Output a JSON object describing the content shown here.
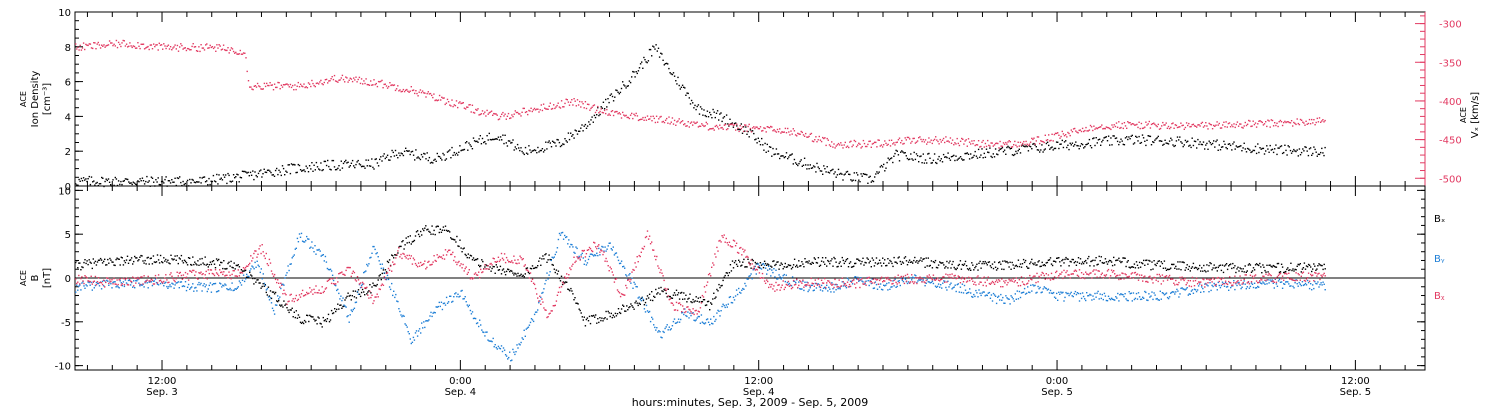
{
  "colors": {
    "black": "#000000",
    "blue": "#1f7fd6",
    "red": "#e23a62",
    "axis": "#000000"
  },
  "x_axis": {
    "label": "hours:minutes, Sep.  3, 2009 - Sep.  5, 2009",
    "ticks": [
      {
        "t": 12,
        "line1": "12:00",
        "line2": "Sep. 3"
      },
      {
        "t": 24,
        "line1": "0:00",
        "line2": "Sep. 4"
      },
      {
        "t": 36,
        "line1": "12:00",
        "line2": "Sep. 4"
      },
      {
        "t": 48,
        "line1": "0:00",
        "line2": "Sep. 5"
      },
      {
        "t": 60,
        "line1": "12:00",
        "line2": "Sep. 5"
      }
    ],
    "range_hours": [
      8.5,
      62.8
    ]
  },
  "chart_data": [
    {
      "type": "scatter",
      "ylabel_left": [
        "ACE",
        "Ion Density",
        "[cm⁻³]"
      ],
      "ylabel_right": [
        "ACE",
        "Vₓ [km/s]"
      ],
      "ylim_left": [
        0,
        10
      ],
      "ylim_right": [
        -510,
        -285
      ],
      "left_ticks": [
        0,
        2,
        4,
        6,
        8,
        10
      ],
      "right_ticks": [
        -300,
        -350,
        -400,
        -450,
        -500
      ],
      "series": [
        {
          "axis": "left",
          "color": "black",
          "points": [
            [
              8.5,
              0.3
            ],
            [
              11,
              0.3
            ],
            [
              13.5,
              0.3
            ],
            [
              15.3,
              0.6
            ],
            [
              17,
              1.0
            ],
            [
              18.5,
              1.2
            ],
            [
              20.5,
              1.3
            ],
            [
              21.5,
              2.0
            ],
            [
              23,
              1.6
            ],
            [
              24.5,
              2.5
            ],
            [
              25.5,
              3.0
            ],
            [
              26.5,
              2.0
            ],
            [
              28,
              2.5
            ],
            [
              29,
              3.5
            ],
            [
              30,
              5.0
            ],
            [
              31,
              6.5
            ],
            [
              31.8,
              8.0
            ],
            [
              32.5,
              6.5
            ],
            [
              33.5,
              4.5
            ],
            [
              34.5,
              4.0
            ],
            [
              35.5,
              3.2
            ],
            [
              36.5,
              2.0
            ],
            [
              37.5,
              1.5
            ],
            [
              38.5,
              1.0
            ],
            [
              39.5,
              0.6
            ],
            [
              40.5,
              0.4
            ],
            [
              41.5,
              1.8
            ],
            [
              43,
              1.6
            ],
            [
              45,
              1.9
            ],
            [
              47,
              2.2
            ],
            [
              49,
              2.5
            ],
            [
              51,
              2.7
            ],
            [
              53,
              2.6
            ],
            [
              55,
              2.3
            ],
            [
              57,
              2.1
            ],
            [
              58.8,
              2.0
            ]
          ]
        },
        {
          "axis": "right",
          "color": "red",
          "points": [
            [
              8.5,
              -330
            ],
            [
              10.5,
              -325
            ],
            [
              12,
              -330
            ],
            [
              14,
              -330
            ],
            [
              15.3,
              -335
            ],
            [
              15.5,
              -380
            ],
            [
              17.5,
              -380
            ],
            [
              19,
              -370
            ],
            [
              20.5,
              -375
            ],
            [
              22,
              -385
            ],
            [
              24,
              -405
            ],
            [
              25.5,
              -420
            ],
            [
              27,
              -410
            ],
            [
              28.5,
              -400
            ],
            [
              29.5,
              -410
            ],
            [
              31,
              -420
            ],
            [
              32.5,
              -425
            ],
            [
              34,
              -432
            ],
            [
              36,
              -435
            ],
            [
              37.5,
              -440
            ],
            [
              39,
              -455
            ],
            [
              40.5,
              -455
            ],
            [
              42,
              -450
            ],
            [
              43.5,
              -450
            ],
            [
              45,
              -455
            ],
            [
              46.5,
              -455
            ],
            [
              48,
              -445
            ],
            [
              49.5,
              -432
            ],
            [
              51,
              -430
            ],
            [
              53,
              -432
            ],
            [
              55,
              -430
            ],
            [
              57,
              -428
            ],
            [
              58.8,
              -425
            ]
          ]
        }
      ]
    },
    {
      "type": "scatter",
      "ylabel_left": [
        "ACE",
        "B",
        "[nT]"
      ],
      "ylim": [
        -10.5,
        10.5
      ],
      "ticks": [
        -10,
        -5,
        0,
        5,
        10
      ],
      "legend": [
        {
          "name": "Bₓ",
          "color": "black"
        },
        {
          "name": "Bᵧ",
          "color": "blue"
        },
        {
          "name": "Bᵪ",
          "color": "red"
        }
      ],
      "series": [
        {
          "name": "Bₓ",
          "color": "black",
          "points": [
            [
              8.5,
              1.5
            ],
            [
              10,
              2.0
            ],
            [
              12,
              2.2
            ],
            [
              13.5,
              2.0
            ],
            [
              15,
              1.5
            ],
            [
              16.5,
              -2.0
            ],
            [
              17.5,
              -4.5
            ],
            [
              18.5,
              -5.0
            ],
            [
              19.5,
              -2.0
            ],
            [
              20.5,
              -1.0
            ],
            [
              21.5,
              3.5
            ],
            [
              22.5,
              5.5
            ],
            [
              23.5,
              5.5
            ],
            [
              24.5,
              2.0
            ],
            [
              25.5,
              1.0
            ],
            [
              26.5,
              0.5
            ],
            [
              27.5,
              2.5
            ],
            [
              28.5,
              -2.0
            ],
            [
              29,
              -5.0
            ],
            [
              30,
              -4.0
            ],
            [
              31,
              -3.0
            ],
            [
              32,
              -1.5
            ],
            [
              33,
              -2.0
            ],
            [
              34,
              -3.0
            ],
            [
              35,
              2.0
            ],
            [
              36,
              1.5
            ],
            [
              37,
              1.5
            ],
            [
              38,
              2.0
            ],
            [
              40,
              1.8
            ],
            [
              42,
              2.0
            ],
            [
              44,
              1.5
            ],
            [
              46,
              1.5
            ],
            [
              48,
              2.0
            ],
            [
              50,
              2.0
            ],
            [
              52,
              1.5
            ],
            [
              54,
              1.3
            ],
            [
              56,
              1.2
            ],
            [
              58.8,
              1.3
            ]
          ]
        },
        {
          "name": "Bᵧ",
          "color": "blue",
          "points": [
            [
              8.5,
              -1.0
            ],
            [
              10,
              -0.5
            ],
            [
              12,
              -0.5
            ],
            [
              13.5,
              -1.0
            ],
            [
              15,
              -1.0
            ],
            [
              15.8,
              2.0
            ],
            [
              16.5,
              -3.5
            ],
            [
              17.5,
              5.0
            ],
            [
              18.5,
              2.5
            ],
            [
              19.5,
              -4.5
            ],
            [
              20.5,
              3.5
            ],
            [
              21.5,
              -3.0
            ],
            [
              22,
              -7.0
            ],
            [
              23,
              -3.5
            ],
            [
              24,
              -1.5
            ],
            [
              25,
              -6.5
            ],
            [
              26,
              -9.0
            ],
            [
              27,
              -4.0
            ],
            [
              28,
              5.0
            ],
            [
              29,
              2.0
            ],
            [
              30,
              4.0
            ],
            [
              31,
              -1.0
            ],
            [
              32,
              -6.5
            ],
            [
              33,
              -4.0
            ],
            [
              34,
              -5.0
            ],
            [
              35,
              -2.0
            ],
            [
              36,
              1.5
            ],
            [
              37,
              0.0
            ],
            [
              38,
              -1.0
            ],
            [
              39,
              -1.0
            ],
            [
              40,
              0.0
            ],
            [
              41,
              -1.0
            ],
            [
              42,
              0.0
            ],
            [
              43,
              -0.5
            ],
            [
              44,
              -1.0
            ],
            [
              45,
              -2.0
            ],
            [
              46,
              -2.5
            ],
            [
              47,
              -1.0
            ],
            [
              48,
              -2.0
            ],
            [
              50,
              -2.0
            ],
            [
              52,
              -2.0
            ],
            [
              54,
              -1.0
            ],
            [
              56,
              -0.5
            ],
            [
              58.8,
              -0.8
            ]
          ]
        },
        {
          "name": "Bᵪ",
          "color": "red",
          "points": [
            [
              8.5,
              0.0
            ],
            [
              10,
              -0.5
            ],
            [
              12,
              0.0
            ],
            [
              13.5,
              0.5
            ],
            [
              15,
              0.5
            ],
            [
              16,
              3.5
            ],
            [
              17,
              -2.5
            ],
            [
              18.5,
              -1.0
            ],
            [
              19.5,
              1.0
            ],
            [
              20.5,
              -2.5
            ],
            [
              21.5,
              3.0
            ],
            [
              22.5,
              1.5
            ],
            [
              23.5,
              3.0
            ],
            [
              24.5,
              0.0
            ],
            [
              25.5,
              2.5
            ],
            [
              26.5,
              2.0
            ],
            [
              27.5,
              -4.5
            ],
            [
              28.5,
              2.0
            ],
            [
              29.5,
              4.0
            ],
            [
              30.5,
              -2.0
            ],
            [
              31.5,
              5.0
            ],
            [
              32.5,
              -3.0
            ],
            [
              33.5,
              -4.0
            ],
            [
              34.5,
              5.0
            ],
            [
              35.5,
              2.5
            ],
            [
              36.5,
              -1.0
            ],
            [
              37.5,
              -0.5
            ],
            [
              38.5,
              -0.5
            ],
            [
              40,
              -0.5
            ],
            [
              42,
              0.0
            ],
            [
              44,
              0.0
            ],
            [
              46,
              -0.5
            ],
            [
              48,
              0.5
            ],
            [
              50,
              0.5
            ],
            [
              52,
              0.0
            ],
            [
              54,
              -0.5
            ],
            [
              56,
              0.0
            ],
            [
              58.8,
              0.3
            ]
          ]
        }
      ]
    }
  ]
}
